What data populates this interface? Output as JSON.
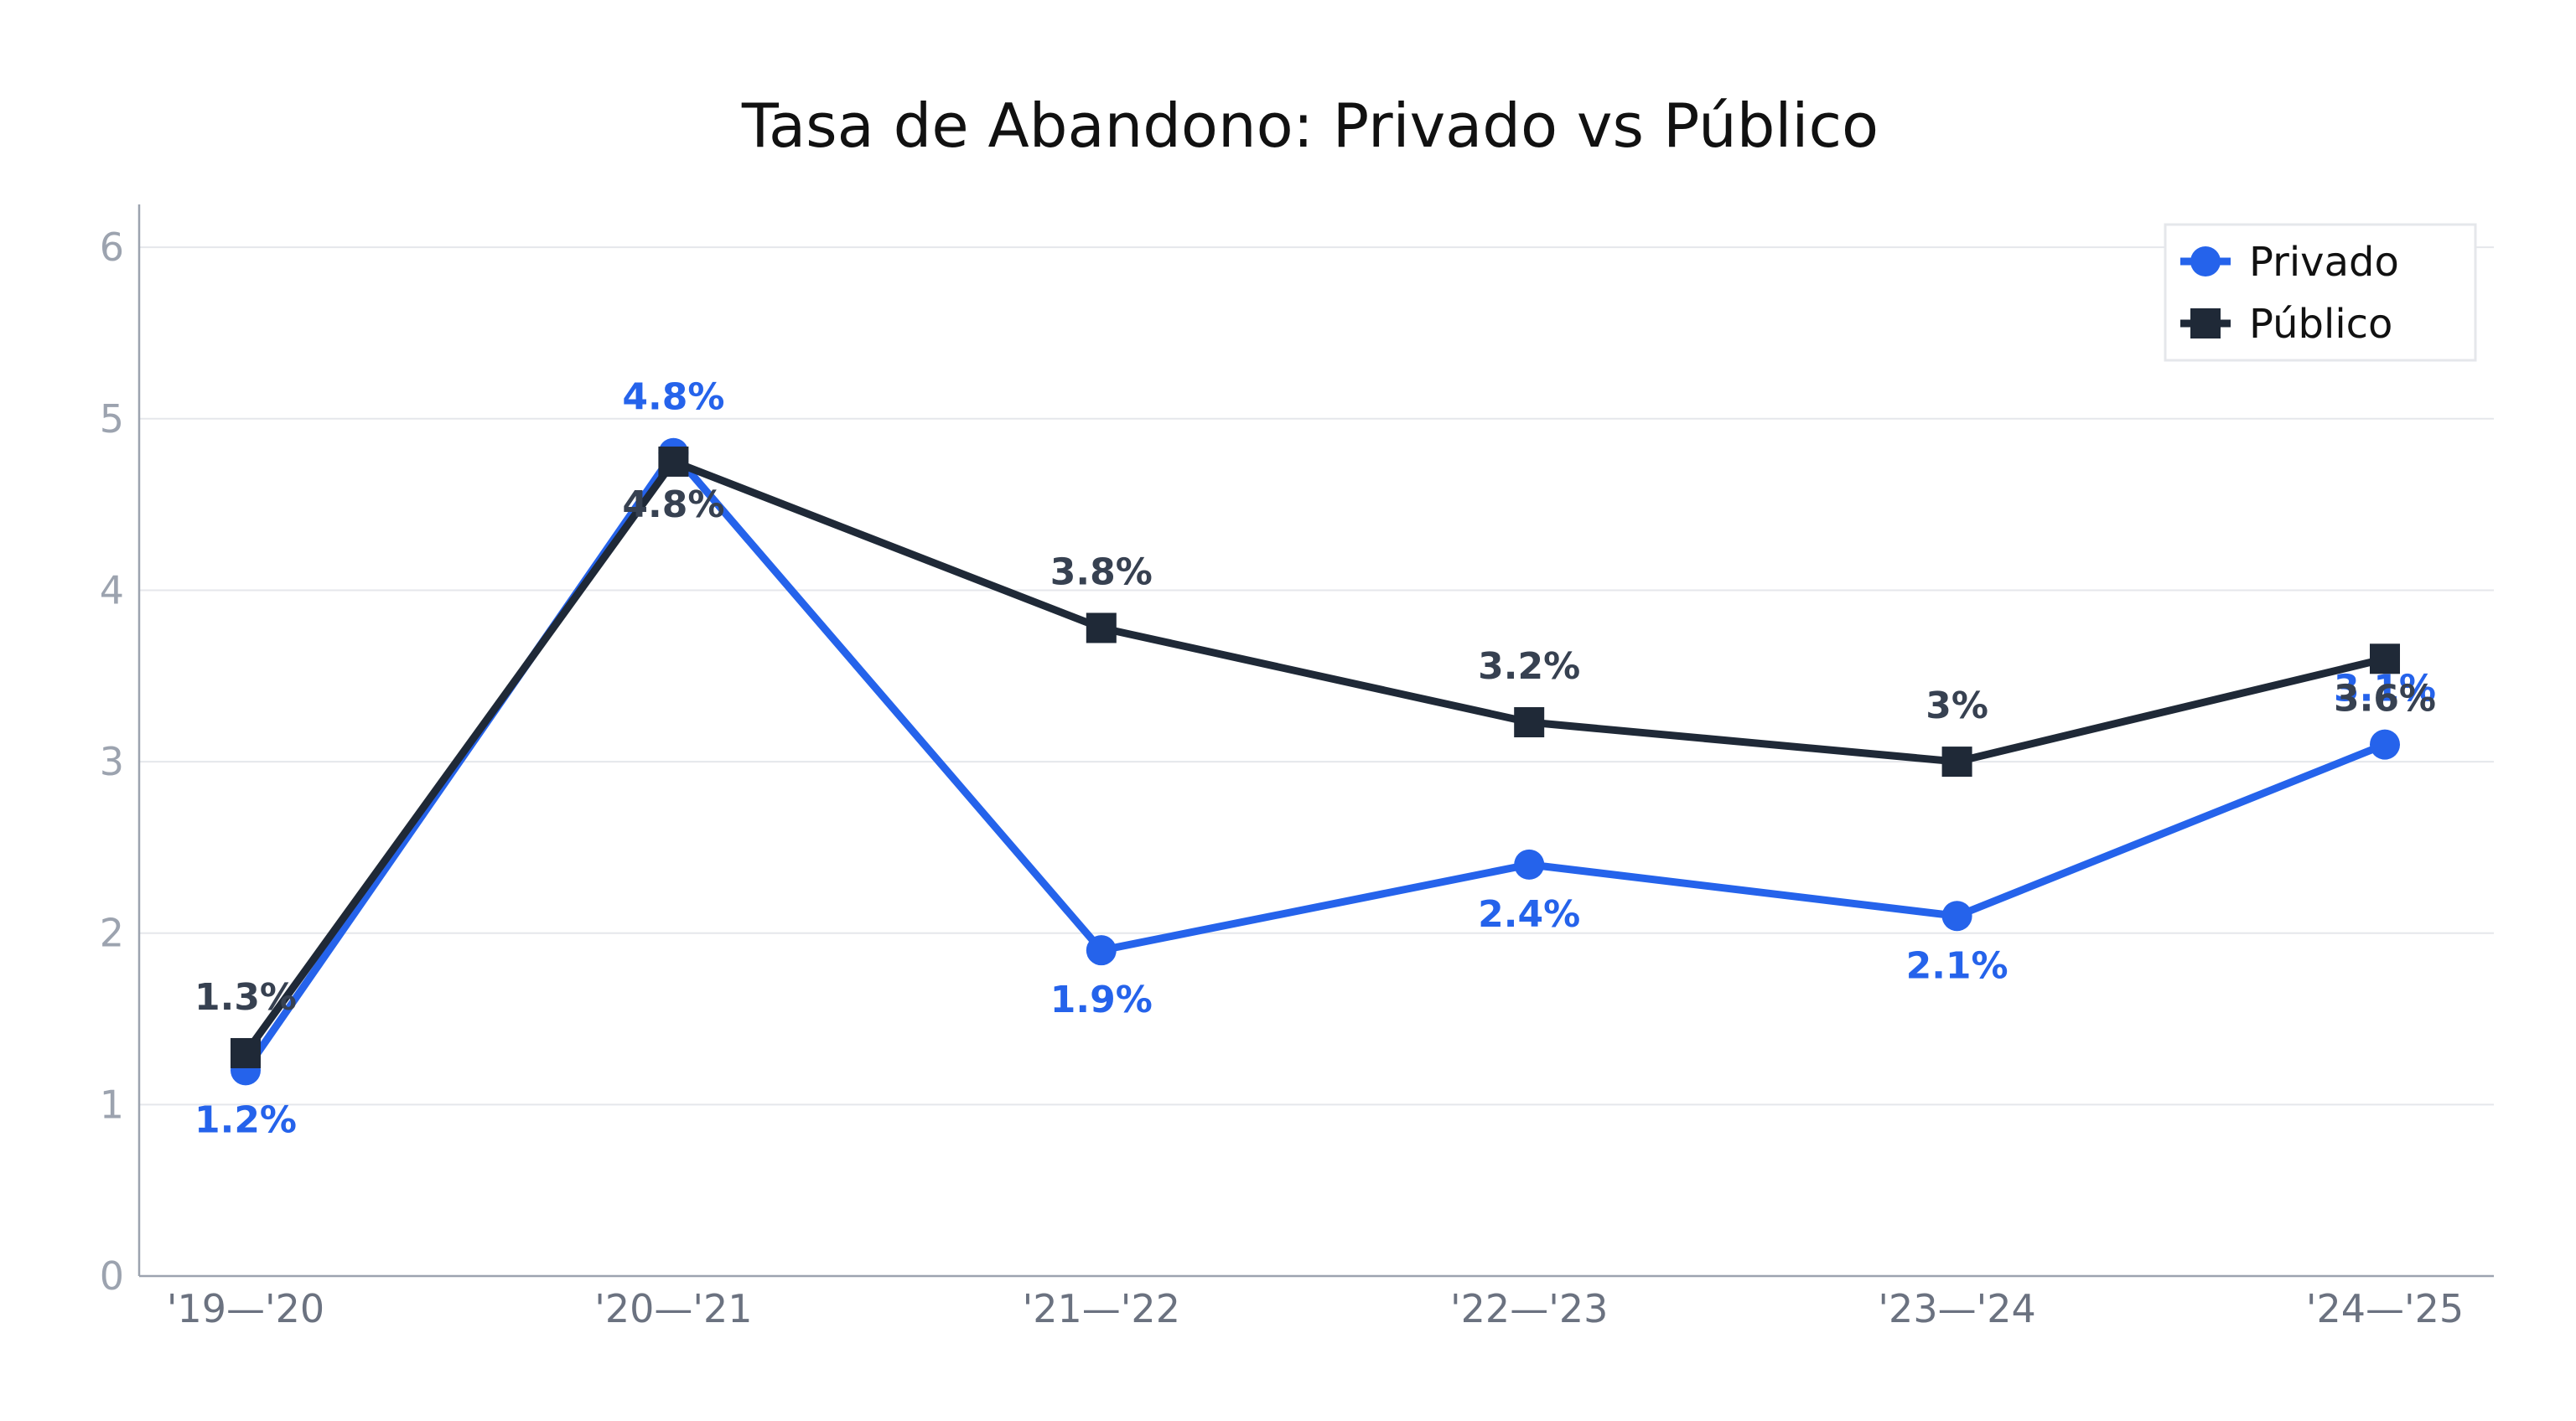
{
  "chart_data": {
    "type": "line",
    "title": "Tasa de Abandono: Privado vs Público",
    "xlabel": "",
    "ylabel": "",
    "categories": [
      "'19—'20",
      "'20—'21",
      "'21—'22",
      "'22—'23",
      "'23—'24",
      "'24—'25"
    ],
    "ylim": [
      0,
      6.25
    ],
    "yticks": [
      "0",
      "1",
      "2",
      "3",
      "4",
      "5",
      "6"
    ],
    "grid": "horizontal",
    "legend_position": "top-right",
    "series": [
      {
        "name": "Privado",
        "color": "#2563eb",
        "marker": "circle",
        "values": [
          1.2,
          4.8,
          1.9,
          2.4,
          2.1,
          3.1
        ],
        "labels": [
          "1.2%",
          "4.8%",
          "1.9%",
          "2.4%",
          "2.1%",
          "3.1%"
        ]
      },
      {
        "name": "Público",
        "color": "#1f2937",
        "label_color": "#374151",
        "marker": "square",
        "values": [
          1.3,
          4.75,
          3.78,
          3.23,
          3.0,
          3.6
        ],
        "labels": [
          "1.3%",
          "4.8%",
          "3.8%",
          "3.2%",
          "3%",
          "3.6%"
        ]
      }
    ]
  }
}
